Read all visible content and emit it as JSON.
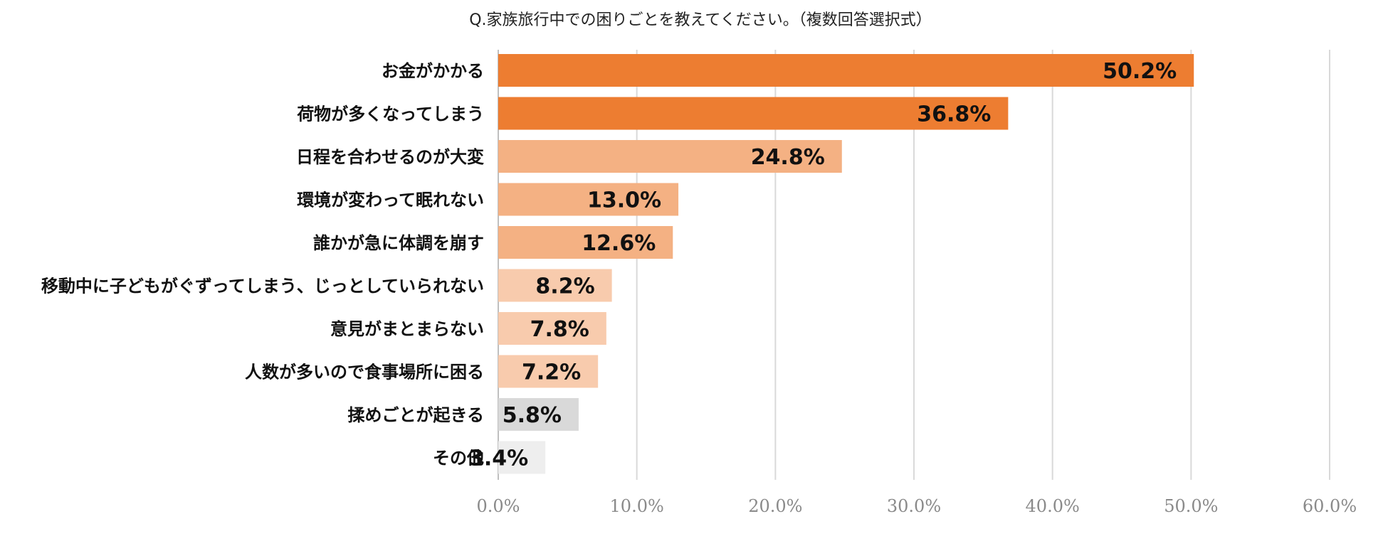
{
  "chart_data": {
    "type": "bar",
    "orientation": "horizontal",
    "title": "Q.家族旅行中での困りごとを教えてください。（複数回答選択式）",
    "categories": [
      "お金がかかる",
      "荷物が多くなってしまう",
      "日程を合わせるのが大変",
      "環境が変わって眠れない",
      "誰かが急に体調を崩す",
      "移動中に子どもがぐずってしまう、じっとしていられない",
      "意見がまとまらない",
      "人数が多いので食事場所に困る",
      "揉めごとが起きる",
      "その他"
    ],
    "values": [
      50.2,
      36.8,
      24.8,
      13.0,
      12.6,
      8.2,
      7.8,
      7.2,
      5.8,
      3.4
    ],
    "value_labels": [
      "50.2%",
      "36.8%",
      "24.8%",
      "13.0%",
      "12.6%",
      "8.2%",
      "7.8%",
      "7.2%",
      "5.8%",
      "3.4%"
    ],
    "bar_colors": [
      "#ed7d31",
      "#ed7d31",
      "#f4b183",
      "#f4b183",
      "#f4b183",
      "#f8cbad",
      "#f8cbad",
      "#f8cbad",
      "#d9d9d9",
      "#eeeeee"
    ],
    "xlim": [
      0,
      60
    ],
    "xticks": [
      0,
      10,
      20,
      30,
      40,
      50,
      60
    ],
    "xtick_labels": [
      "0.0%",
      "10.0%",
      "20.0%",
      "30.0%",
      "40.0%",
      "50.0%",
      "60.0%"
    ],
    "grid": true,
    "xlabel": "",
    "ylabel": ""
  }
}
